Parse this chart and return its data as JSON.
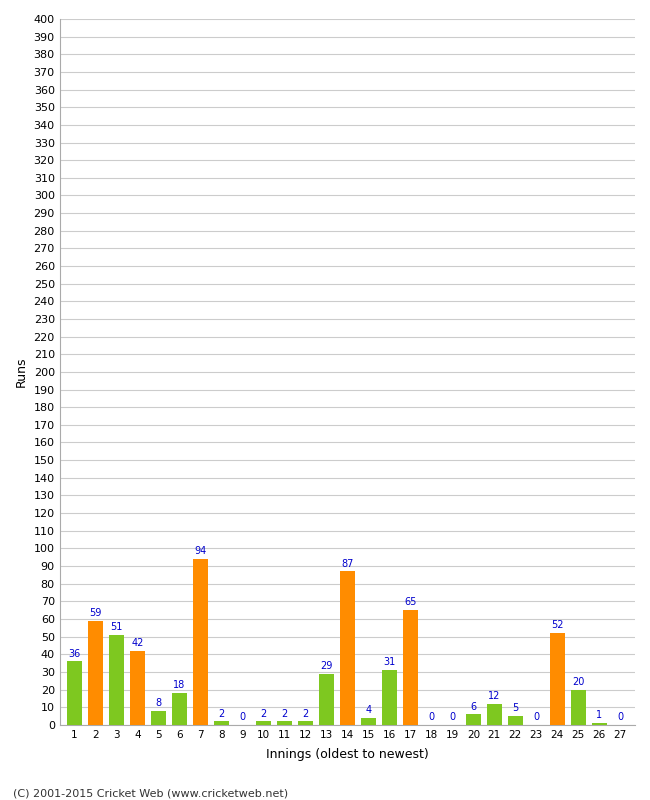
{
  "innings": [
    1,
    2,
    3,
    4,
    5,
    6,
    7,
    8,
    9,
    10,
    11,
    12,
    13,
    14,
    15,
    16,
    17,
    18,
    19,
    20,
    21,
    22,
    23,
    24,
    25,
    26,
    27
  ],
  "values": [
    36,
    59,
    51,
    42,
    8,
    18,
    94,
    2,
    0,
    2,
    2,
    2,
    29,
    87,
    4,
    31,
    65,
    0,
    0,
    6,
    12,
    5,
    0,
    52,
    20,
    1,
    0
  ],
  "colors": [
    "#7ec820",
    "#ff8c00",
    "#7ec820",
    "#ff8c00",
    "#7ec820",
    "#7ec820",
    "#ff8c00",
    "#7ec820",
    "#7ec820",
    "#7ec820",
    "#7ec820",
    "#7ec820",
    "#7ec820",
    "#ff8c00",
    "#7ec820",
    "#7ec820",
    "#ff8c00",
    "#7ec820",
    "#7ec820",
    "#7ec820",
    "#7ec820",
    "#7ec820",
    "#7ec820",
    "#ff8c00",
    "#7ec820",
    "#7ec820",
    "#7ec820"
  ],
  "label_color": "#0000cd",
  "background_color": "#ffffff",
  "grid_color": "#cccccc",
  "ylabel": "Runs",
  "xlabel": "Innings (oldest to newest)",
  "ylim": [
    0,
    400
  ],
  "yticks": [
    0,
    10,
    20,
    30,
    40,
    50,
    60,
    70,
    80,
    90,
    100,
    110,
    120,
    130,
    140,
    150,
    160,
    170,
    180,
    190,
    200,
    210,
    220,
    230,
    240,
    250,
    260,
    270,
    280,
    290,
    300,
    310,
    320,
    330,
    340,
    350,
    360,
    370,
    380,
    390,
    400
  ],
  "footer": "(C) 2001-2015 Cricket Web (www.cricketweb.net)",
  "figwidth": 6.5,
  "figheight": 8.0,
  "dpi": 100
}
